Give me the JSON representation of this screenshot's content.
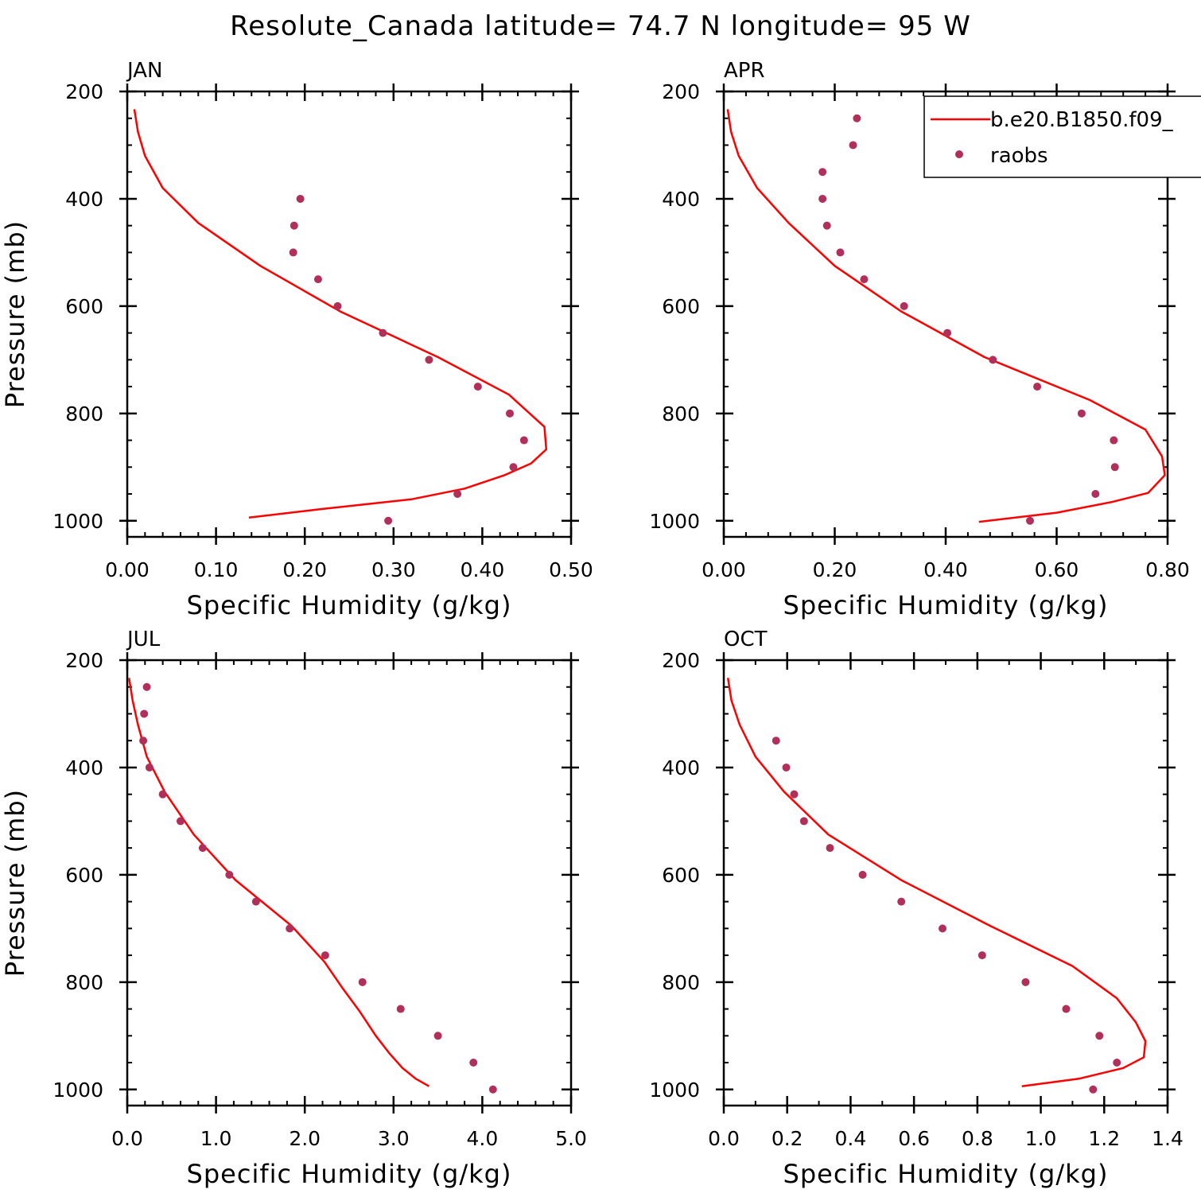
{
  "title": "Resolute_Canada  latitude= 74.7 N longitude= 95 W",
  "colors": {
    "model": "#ff0000",
    "obs": "#b0305a",
    "axis": "#000000"
  },
  "legend": {
    "placement": "top-right of APR panel",
    "model_label": "b.e20.B1850.f09_",
    "obs_label": "raobs"
  },
  "chart_data": [
    {
      "type": "line",
      "panel": "JAN",
      "xlabel": "Specific Humidity (g/kg)",
      "ylabel": "Pressure (mb)",
      "xlim": [
        0,
        0.5
      ],
      "ylim": [
        1030,
        200
      ],
      "xticks": [
        0,
        0.1,
        0.2,
        0.3,
        0.4,
        0.5
      ],
      "xtick_labels": [
        "0.00",
        "0.10",
        "0.20",
        "0.30",
        "0.40",
        "0.50"
      ],
      "yticks": [
        200,
        400,
        600,
        800,
        1000
      ],
      "ytick_labels": [
        "200",
        "400",
        "600",
        "800",
        "1000"
      ],
      "series": [
        {
          "name": "b.e20.B1850.f09_",
          "kind": "line",
          "x": [
            0.008,
            0.012,
            0.02,
            0.04,
            0.08,
            0.15,
            0.24,
            0.35,
            0.43,
            0.47,
            0.472,
            0.455,
            0.425,
            0.38,
            0.32,
            0.22,
            0.137
          ],
          "y": [
            233,
            275,
            320,
            380,
            445,
            525,
            610,
            695,
            765,
            825,
            867,
            893,
            915,
            940,
            960,
            978,
            994
          ]
        },
        {
          "name": "raobs",
          "kind": "scatter",
          "x": [
            0.195,
            0.188,
            0.187,
            0.215,
            0.237,
            0.288,
            0.34,
            0.395,
            0.431,
            0.447,
            0.435,
            0.372,
            0.294
          ],
          "y": [
            400,
            450,
            500,
            550,
            600,
            650,
            700,
            750,
            800,
            850,
            900,
            950,
            1000
          ]
        }
      ]
    },
    {
      "type": "line",
      "panel": "APR",
      "xlabel": "Specific Humidity (g/kg)",
      "ylabel": "",
      "xlim": [
        0,
        0.8
      ],
      "ylim": [
        1030,
        200
      ],
      "xticks": [
        0,
        0.2,
        0.4,
        0.6,
        0.8
      ],
      "xtick_labels": [
        "0.00",
        "0.20",
        "0.40",
        "0.60",
        "0.80"
      ],
      "yticks": [
        200,
        400,
        600,
        800,
        1000
      ],
      "ytick_labels": [
        "200",
        "400",
        "600",
        "800",
        "1000"
      ],
      "series": [
        {
          "name": "b.e20.B1850.f09_",
          "kind": "line",
          "x": [
            0.007,
            0.013,
            0.027,
            0.06,
            0.117,
            0.2,
            0.32,
            0.47,
            0.66,
            0.76,
            0.79,
            0.795,
            0.765,
            0.7,
            0.6,
            0.46
          ],
          "y": [
            233,
            275,
            320,
            380,
            445,
            525,
            610,
            695,
            775,
            830,
            880,
            915,
            948,
            965,
            985,
            1002
          ]
        },
        {
          "name": "raobs",
          "kind": "scatter",
          "x": [
            0.24,
            0.233,
            0.178,
            0.178,
            0.186,
            0.21,
            0.253,
            0.325,
            0.403,
            0.485,
            0.565,
            0.645,
            0.703,
            0.705,
            0.67,
            0.552
          ],
          "y": [
            250,
            300,
            350,
            400,
            450,
            500,
            550,
            600,
            650,
            700,
            750,
            800,
            850,
            900,
            950,
            1000
          ]
        }
      ]
    },
    {
      "type": "line",
      "panel": "JUL",
      "xlabel": "Specific Humidity (g/kg)",
      "ylabel": "Pressure (mb)",
      "xlim": [
        0,
        5.0
      ],
      "ylim": [
        1030,
        200
      ],
      "xticks": [
        0,
        1,
        2,
        3,
        4,
        5
      ],
      "xtick_labels": [
        "0.0",
        "1.0",
        "2.0",
        "3.0",
        "4.0",
        "5.0"
      ],
      "yticks": [
        200,
        400,
        600,
        800,
        1000
      ],
      "ytick_labels": [
        "200",
        "400",
        "600",
        "800",
        "1000"
      ],
      "series": [
        {
          "name": "b.e20.B1850.f09_",
          "kind": "line",
          "x": [
            0.02,
            0.06,
            0.12,
            0.22,
            0.42,
            0.75,
            1.22,
            1.85,
            2.22,
            2.42,
            2.62,
            2.8,
            2.95,
            3.1,
            3.25,
            3.4
          ],
          "y": [
            233,
            275,
            320,
            380,
            445,
            525,
            610,
            695,
            762,
            810,
            855,
            900,
            932,
            960,
            980,
            994
          ]
        },
        {
          "name": "raobs",
          "kind": "scatter",
          "x": [
            0.22,
            0.19,
            0.18,
            0.25,
            0.4,
            0.6,
            0.85,
            1.15,
            1.45,
            1.83,
            2.23,
            2.65,
            3.08,
            3.5,
            3.9,
            4.12
          ],
          "y": [
            250,
            300,
            350,
            400,
            450,
            500,
            550,
            600,
            650,
            700,
            750,
            800,
            850,
            900,
            950,
            1000
          ]
        }
      ]
    },
    {
      "type": "line",
      "panel": "OCT",
      "xlabel": "Specific Humidity (g/kg)",
      "ylabel": "",
      "xlim": [
        0,
        1.4
      ],
      "ylim": [
        1030,
        200
      ],
      "xticks": [
        0,
        0.2,
        0.4,
        0.6,
        0.8,
        1.0,
        1.2,
        1.4
      ],
      "xtick_labels": [
        "0.0",
        "0.2",
        "0.4",
        "0.6",
        "0.8",
        "1.0",
        "1.2",
        "1.4"
      ],
      "yticks": [
        200,
        400,
        600,
        800,
        1000
      ],
      "ytick_labels": [
        "200",
        "400",
        "600",
        "800",
        "1000"
      ],
      "series": [
        {
          "name": "b.e20.B1850.f09_",
          "kind": "line",
          "x": [
            0.013,
            0.024,
            0.05,
            0.1,
            0.19,
            0.33,
            0.56,
            0.84,
            1.1,
            1.24,
            1.3,
            1.33,
            1.325,
            1.26,
            1.12,
            0.94
          ],
          "y": [
            233,
            275,
            320,
            380,
            445,
            525,
            610,
            695,
            770,
            830,
            875,
            910,
            940,
            960,
            980,
            994
          ]
        },
        {
          "name": "raobs",
          "kind": "scatter",
          "x": [
            0.165,
            0.197,
            0.222,
            0.253,
            0.335,
            0.438,
            0.56,
            0.69,
            0.815,
            0.952,
            1.08,
            1.185,
            1.24,
            1.165
          ],
          "y": [
            350,
            400,
            450,
            500,
            550,
            600,
            650,
            700,
            750,
            800,
            850,
            900,
            950,
            1000
          ]
        }
      ]
    }
  ]
}
